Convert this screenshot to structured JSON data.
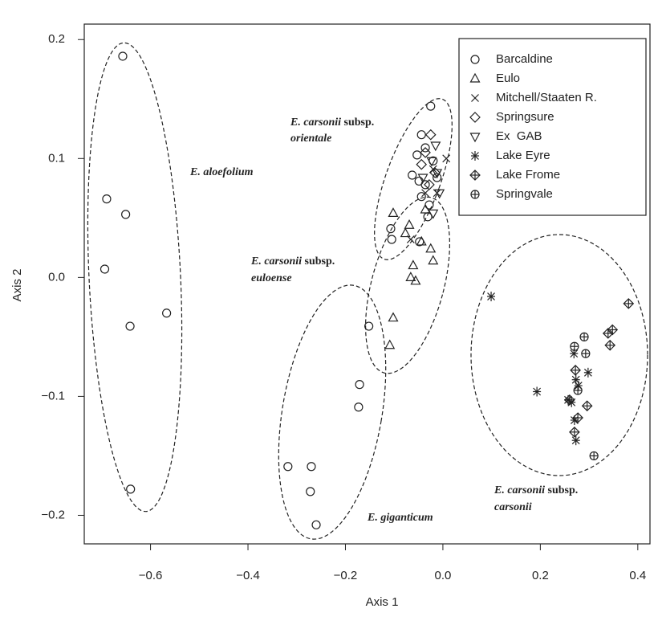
{
  "chart_data": {
    "type": "scatter",
    "xlabel": "Axis 1",
    "ylabel": "Axis 2",
    "xlim": [
      -0.736,
      0.425
    ],
    "ylim": [
      -0.224,
      0.213
    ],
    "xticks": [
      {
        "value": -0.6,
        "label": "−0.6"
      },
      {
        "value": -0.4,
        "label": "−0.4"
      },
      {
        "value": -0.2,
        "label": "−0.2"
      },
      {
        "value": 0,
        "label": "0.0"
      },
      0.2,
      0.4
    ],
    "yticks": [
      {
        "value": -0.2,
        "label": "−0.2"
      },
      {
        "value": -0.1,
        "label": "−0.1"
      },
      {
        "value": 0,
        "label": "0.0"
      },
      0.1,
      0.2
    ],
    "legend": "upper right",
    "series": [
      {
        "name": "Barcaldine",
        "marker": "circle",
        "color": "#222",
        "x": [
          -0.657,
          -0.69,
          -0.651,
          -0.694,
          -0.567,
          -0.642,
          -0.641,
          -0.152,
          -0.171,
          -0.173,
          -0.318,
          -0.27,
          -0.272,
          -0.26,
          -0.107,
          -0.105,
          -0.025,
          -0.044,
          -0.053,
          -0.036,
          -0.063,
          -0.049,
          -0.036,
          -0.028,
          -0.031,
          -0.012,
          -0.044,
          -0.02,
          -0.048
        ],
        "y": [
          0.186,
          0.066,
          0.053,
          0.007,
          -0.03,
          -0.041,
          -0.178,
          -0.041,
          -0.09,
          -0.109,
          -0.159,
          -0.159,
          -0.18,
          -0.208,
          0.041,
          0.032,
          0.144,
          0.12,
          0.103,
          0.109,
          0.086,
          0.081,
          0.078,
          0.061,
          0.051,
          0.084,
          0.068,
          0.098,
          0.03
        ]
      },
      {
        "name": "Eulo",
        "marker": "triangle",
        "color": "#222",
        "x": [
          -0.102,
          -0.069,
          -0.077,
          -0.044,
          -0.025,
          -0.02,
          -0.061,
          -0.066,
          -0.056,
          -0.102,
          -0.109,
          -0.036
        ],
        "y": [
          0.054,
          0.044,
          0.037,
          0.03,
          0.024,
          0.014,
          0.01,
          0.0,
          -0.003,
          -0.034,
          -0.057,
          0.057
        ]
      },
      {
        "name": "Mitchell/Staaten R.",
        "marker": "x",
        "color": "#222",
        "x": [
          0.007,
          -0.066,
          -0.036,
          -0.02,
          -0.012
        ],
        "y": [
          0.1,
          0.032,
          0.071,
          0.091,
          0.071
        ]
      },
      {
        "name": "Springsure",
        "marker": "diamond",
        "color": "#222",
        "x": [
          -0.025,
          -0.036,
          -0.016,
          -0.028,
          -0.044
        ],
        "y": [
          0.12,
          0.105,
          0.088,
          0.078,
          0.095
        ]
      },
      {
        "name": "Ex  GAB",
        "marker": "triangle-down",
        "color": "#222",
        "x": [
          -0.015,
          -0.023,
          -0.012,
          -0.007,
          -0.02,
          -0.041
        ],
        "y": [
          0.111,
          0.098,
          0.088,
          0.071,
          0.054,
          0.084
        ]
      },
      {
        "name": "Lake Eyre",
        "marker": "asterisk",
        "color": "#222",
        "x": [
          0.099,
          0.193,
          0.257,
          0.298,
          0.273,
          0.27,
          0.273,
          0.264,
          0.278,
          0.269
        ],
        "y": [
          -0.016,
          -0.096,
          -0.103,
          -0.08,
          -0.086,
          -0.12,
          -0.137,
          -0.105,
          -0.091,
          -0.064
        ]
      },
      {
        "name": "Lake Frome",
        "marker": "diamond-plus",
        "color": "#222",
        "x": [
          0.381,
          0.348,
          0.339,
          0.343,
          0.272,
          0.296,
          0.27,
          0.277,
          0.26
        ],
        "y": [
          -0.022,
          -0.044,
          -0.047,
          -0.057,
          -0.078,
          -0.108,
          -0.13,
          -0.118,
          -0.103
        ]
      },
      {
        "name": "Springvale",
        "marker": "circle-plus",
        "color": "#222",
        "x": [
          0.31,
          0.29,
          0.27,
          0.293,
          0.277
        ],
        "y": [
          -0.15,
          -0.05,
          -0.058,
          -0.064,
          -0.095
        ]
      }
    ],
    "annotations": [
      {
        "species": "E. aloefolium"
      },
      {
        "species": "E. carsonii",
        "rank": "subsp.",
        "epithet": "orientale"
      },
      {
        "species": "E. carsonii",
        "rank": "subsp.",
        "epithet": "euloense"
      },
      {
        "species": "E. giganticum"
      },
      {
        "species": "E. carsonii",
        "rank": "subsp.",
        "epithet": "carsonii"
      }
    ]
  }
}
